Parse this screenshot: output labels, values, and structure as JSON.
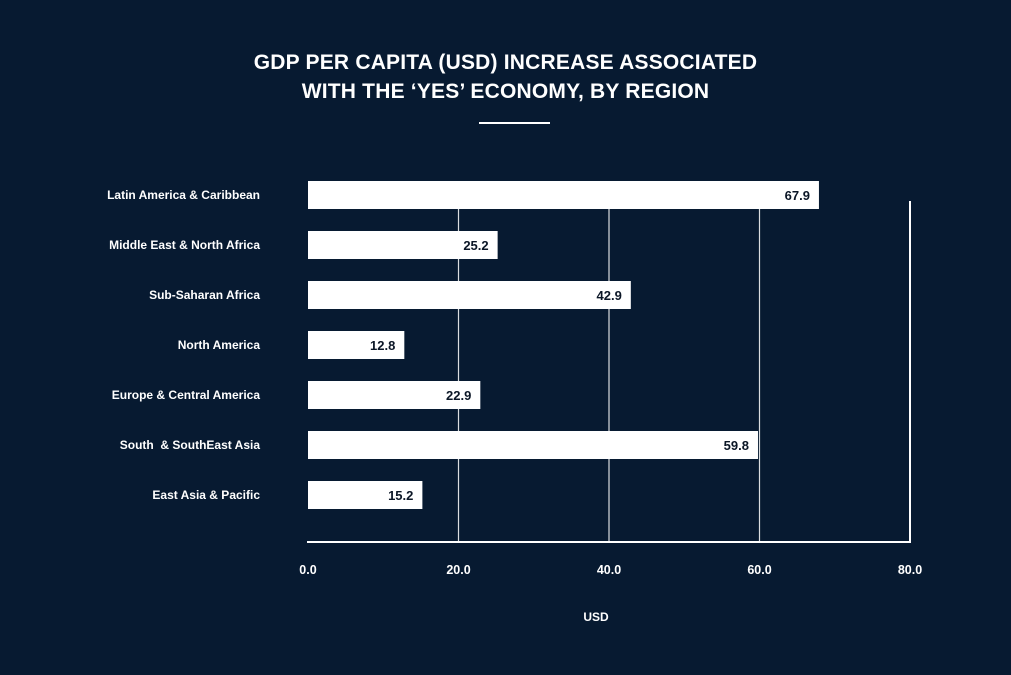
{
  "chart_data": {
    "type": "bar",
    "orientation": "horizontal",
    "title_line1": "GDP PER CAPITA (USD) INCREASE ASSOCIATED",
    "title_line2": "WITH THE ‘YES’ ECONOMY, BY REGION",
    "xlabel": "USD",
    "ylabel": "",
    "xlim": [
      0,
      80
    ],
    "ticks": [
      0,
      20,
      40,
      60,
      80
    ],
    "tick_labels": [
      "0.0",
      "20.0",
      "40.0",
      "60.0",
      "80.0"
    ],
    "grid": true,
    "categories": [
      "Latin America & Caribbean",
      "Middle East & North Africa",
      "Sub-Saharan Africa",
      "North America",
      "Europe & Central America",
      "South  & SouthEast Asia",
      "East Asia & Pacific"
    ],
    "values": [
      67.9,
      25.2,
      42.9,
      12.8,
      22.9,
      59.8,
      15.2
    ],
    "value_labels": [
      "67.9",
      "25.2",
      "42.9",
      "12.8",
      "22.9",
      "59.8",
      "15.2"
    ]
  },
  "colors": {
    "background": "#071a31",
    "bar": "#ffffff",
    "grid": "#ffffff",
    "value_text": "#0b1626"
  }
}
